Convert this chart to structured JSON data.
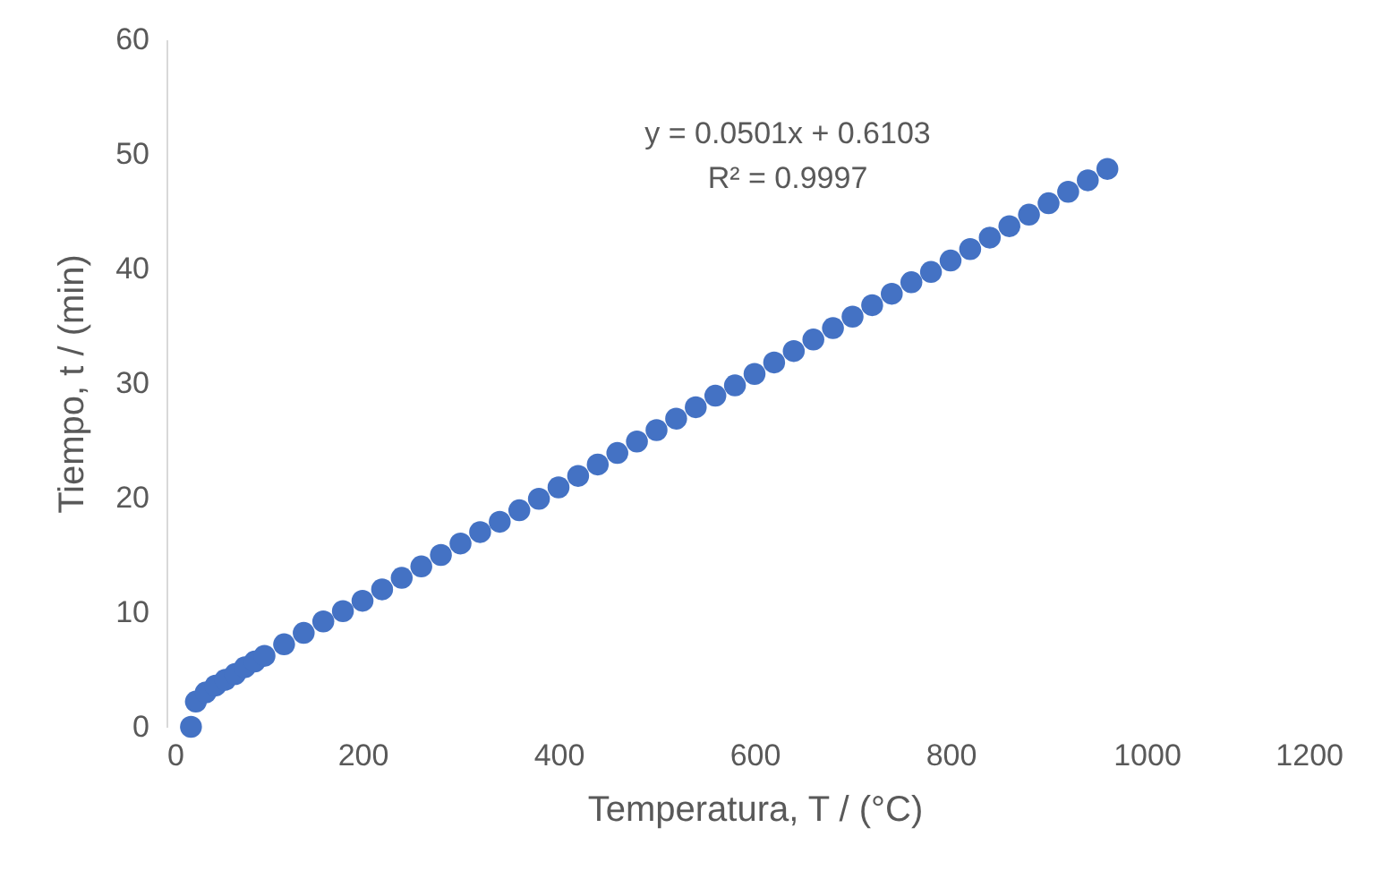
{
  "chart_data": {
    "type": "scatter",
    "xlabel": "Temperatura, T / (°C)",
    "ylabel": "Tiempo, t / (min)",
    "annotations": [
      "y = 0.0501x + 0.6103\nR² = 0.9997"
    ],
    "xlim": [
      0,
      1200
    ],
    "xticks": [
      0,
      200,
      400,
      600,
      800,
      1000,
      1200
    ],
    "ylim": [
      0,
      60
    ],
    "yticks": [
      0,
      10,
      20,
      30,
      40,
      50,
      60
    ],
    "grid": false,
    "marker": "circle",
    "legend": false,
    "series": [
      {
        "color": "#4472c4",
        "x": [
          25,
          30,
          40,
          50,
          60,
          70,
          80,
          90,
          100,
          120,
          140,
          160,
          180,
          200,
          220,
          240,
          260,
          280,
          300,
          320,
          340,
          360,
          380,
          400,
          420,
          440,
          460,
          480,
          500,
          520,
          540,
          560,
          580,
          600,
          620,
          640,
          660,
          680,
          700,
          720,
          740,
          760,
          780,
          800,
          820,
          840,
          860,
          880,
          900,
          920,
          940,
          960
        ],
        "values": [
          0,
          2.2,
          3.0,
          3.6,
          4.1,
          4.6,
          5.2,
          5.7,
          6.2,
          7.2,
          8.2,
          9.2,
          10.1,
          11.0,
          12.0,
          13.0,
          14.0,
          15.0,
          16.0,
          17.0,
          17.9,
          18.9,
          19.9,
          20.9,
          21.9,
          22.9,
          23.9,
          24.9,
          25.9,
          26.9,
          27.9,
          28.9,
          29.8,
          30.8,
          31.8,
          32.8,
          33.8,
          34.8,
          35.8,
          36.8,
          37.8,
          38.8,
          39.7,
          40.7,
          41.7,
          42.7,
          43.7,
          44.7,
          45.7,
          46.7,
          47.7,
          48.7
        ]
      }
    ]
  }
}
